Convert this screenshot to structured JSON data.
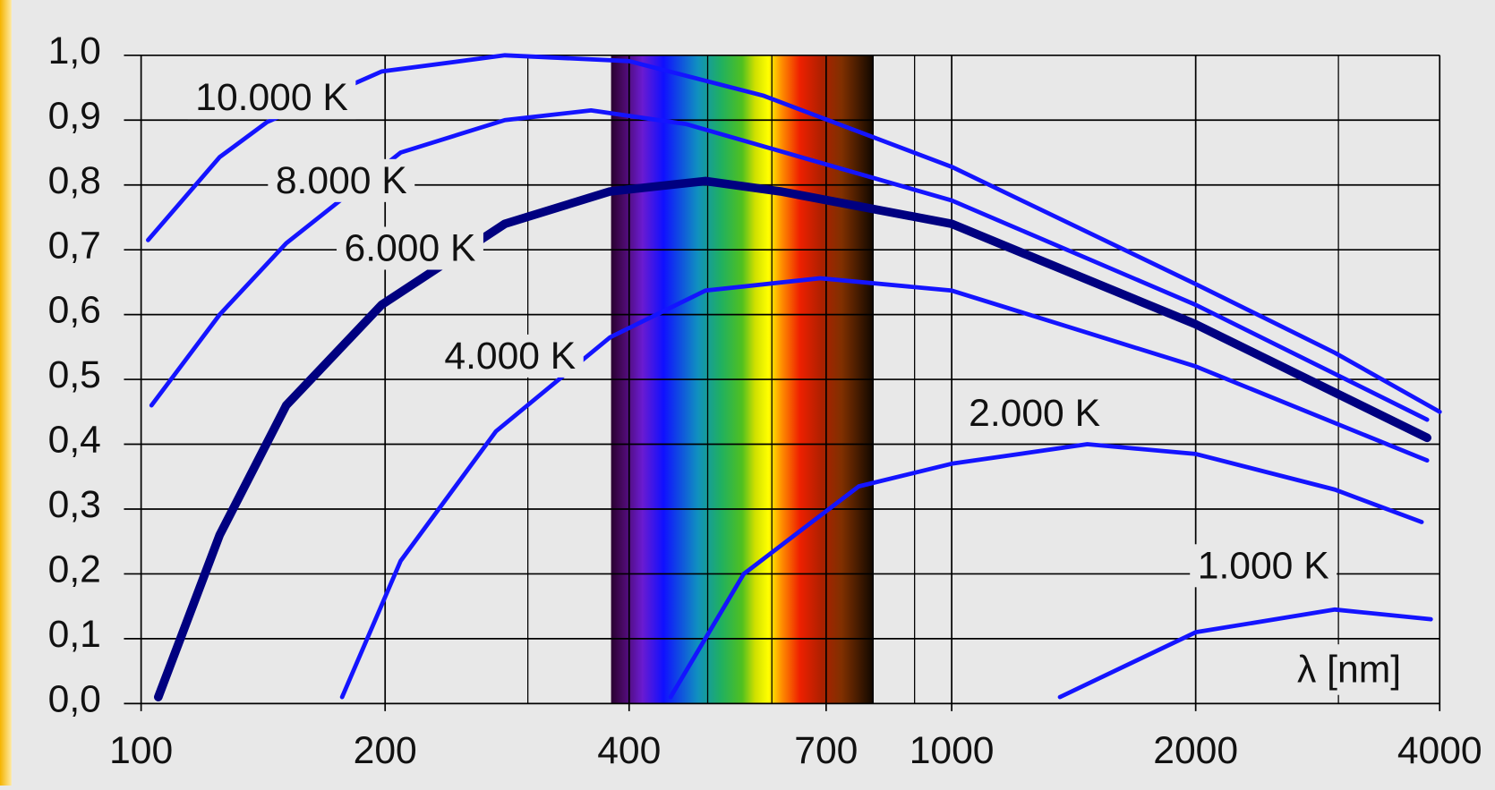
{
  "chart_data": {
    "type": "line",
    "x_label": "λ [nm]",
    "xscale": "log",
    "xlim": [
      100,
      4000
    ],
    "xticks": [
      100,
      200,
      400,
      700,
      1000,
      2000,
      4000
    ],
    "x_minor_ticks": [
      300,
      500,
      600,
      800,
      900,
      3000
    ],
    "ylim": [
      0,
      1.0
    ],
    "yticks": [
      {
        "value": 0,
        "label": "0,0"
      },
      {
        "value": 0.1,
        "label": "0,1"
      },
      {
        "value": 0.2,
        "label": "0,2"
      },
      {
        "value": 0.3,
        "label": "0,3"
      },
      {
        "value": 0.4,
        "label": "0,4"
      },
      {
        "value": 0.5,
        "label": "0,5"
      },
      {
        "value": 0.6,
        "label": "0,6"
      },
      {
        "value": 0.7,
        "label": "0,7"
      },
      {
        "value": 0.8,
        "label": "0,8"
      },
      {
        "value": 0.9,
        "label": "0,9"
      },
      {
        "value": 1.0,
        "label": "1,0"
      }
    ],
    "grid": true,
    "spectrum_range": [
      380,
      800
    ],
    "series": [
      {
        "name": "10.000 K",
        "color": "#1414ff",
        "x": [
          102,
          125,
          143,
          198,
          281,
          400,
          585,
          1000,
          2000,
          2970,
          4000
        ],
        "values": [
          0.715,
          0.843,
          0.897,
          0.975,
          1.0,
          0.991,
          0.938,
          0.828,
          0.647,
          0.541,
          0.45
        ]
      },
      {
        "name": "8.000 K",
        "color": "#1414ff",
        "x": [
          103,
          125,
          151,
          209,
          281,
          359,
          470,
          1000,
          2000,
          3860
        ],
        "values": [
          0.46,
          0.6,
          0.71,
          0.85,
          0.9,
          0.915,
          0.894,
          0.776,
          0.615,
          0.438
        ]
      },
      {
        "name": "6.000 K",
        "color": "#000080",
        "x": [
          105,
          125,
          151,
          198,
          281,
          379,
          497,
          615,
          1000,
          2000,
          3860
        ],
        "values": [
          0.01,
          0.26,
          0.46,
          0.615,
          0.74,
          0.79,
          0.806,
          0.79,
          0.74,
          0.585,
          0.41
        ]
      },
      {
        "name": "4.000 K",
        "color": "#1414ff",
        "x": [
          177,
          209,
          274,
          379,
          497,
          688,
          1000,
          2000,
          3860
        ],
        "values": [
          0.01,
          0.22,
          0.42,
          0.565,
          0.637,
          0.656,
          0.637,
          0.52,
          0.375
        ]
      },
      {
        "name": "2.000 K",
        "color": "#1414ff",
        "x": [
          450,
          554,
          768,
          1000,
          1470,
          2000,
          2970,
          3800
        ],
        "values": [
          0.01,
          0.2,
          0.335,
          0.37,
          0.4,
          0.385,
          0.33,
          0.28
        ]
      },
      {
        "name": "1.000 K",
        "color": "#1414ff",
        "x": [
          1360,
          2000,
          2970,
          3900
        ],
        "values": [
          0.01,
          0.11,
          0.145,
          0.13
        ]
      }
    ]
  }
}
